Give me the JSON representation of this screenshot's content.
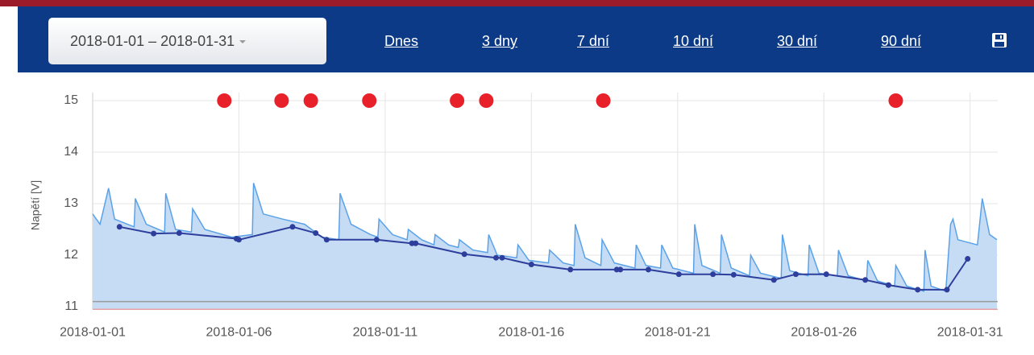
{
  "toolbar": {
    "date_range": "2018-01-01 – 2018-01-31",
    "links": [
      "Dnes",
      "3 dny",
      "7 dní",
      "10 dní",
      "30 dní",
      "90 dní"
    ]
  },
  "chart_data": {
    "type": "line",
    "y_label": "Napětí [V]",
    "xlim": [
      "2018-01-01",
      "2018-02-01"
    ],
    "xticks": [
      "2018-01-01",
      "2018-01-06",
      "2018-01-11",
      "2018-01-16",
      "2018-01-21",
      "2018-01-26",
      "2018-01-31"
    ],
    "ylim": [
      10.95,
      15
    ],
    "yticks": [
      11,
      12,
      13,
      14,
      15
    ],
    "grid": true,
    "reference_lines": [
      {
        "value": 11.1,
        "color": "#9a9a9a"
      },
      {
        "value": 10.95,
        "color": "#e8a0a0"
      }
    ],
    "series": [
      {
        "style": "area",
        "color": "#5aa2e8",
        "fill": "#c6dcf5",
        "x": [
          "2018-01-01 00:00",
          "2018-01-01 06:00",
          "2018-01-01 13:00",
          "2018-01-01 18:00",
          "2018-01-02 10:00",
          "2018-01-02 11:00",
          "2018-01-02 20:00",
          "2018-01-03 11:00",
          "2018-01-03 12:00",
          "2018-01-03 20:00",
          "2018-01-04 09:00",
          "2018-01-04 10:00",
          "2018-01-04 20:00",
          "2018-01-05 18:00",
          "2018-01-06 11:00",
          "2018-01-06 12:00",
          "2018-01-06 20:00",
          "2018-01-07 12:00",
          "2018-01-08 06:00",
          "2018-01-08 20:00",
          "2018-01-09 10:00",
          "2018-01-09 11:00",
          "2018-01-09 20:00",
          "2018-01-10 12:00",
          "2018-01-10 18:00",
          "2018-01-10 19:00",
          "2018-01-11 06:00",
          "2018-01-11 18:00",
          "2018-01-11 19:00",
          "2018-01-12 06:00",
          "2018-01-12 16:00",
          "2018-01-12 17:00",
          "2018-01-13 04:00",
          "2018-01-13 12:00",
          "2018-01-13 13:00",
          "2018-01-14 00:00",
          "2018-01-14 12:00",
          "2018-01-14 13:00",
          "2018-01-14 20:00",
          "2018-01-15 12:00",
          "2018-01-15 13:00",
          "2018-01-15 22:00",
          "2018-01-16 14:00",
          "2018-01-16 15:00",
          "2018-01-17 02:00",
          "2018-01-17 11:00",
          "2018-01-17 12:00",
          "2018-01-17 20:00",
          "2018-01-18 09:00",
          "2018-01-18 10:00",
          "2018-01-18 20:00",
          "2018-01-19 13:00",
          "2018-01-19 14:00",
          "2018-01-19 22:00",
          "2018-01-20 10:00",
          "2018-01-20 11:00",
          "2018-01-20 20:00",
          "2018-01-21 13:00",
          "2018-01-21 14:00",
          "2018-01-21 20:00",
          "2018-01-22 11:00",
          "2018-01-22 12:00",
          "2018-01-22 20:00",
          "2018-01-23 11:00",
          "2018-01-23 12:00",
          "2018-01-23 20:00",
          "2018-01-24 13:00",
          "2018-01-24 14:00",
          "2018-01-24 20:00",
          "2018-01-25 11:00",
          "2018-01-25 12:00",
          "2018-01-25 20:00",
          "2018-01-26 11:00",
          "2018-01-26 12:00",
          "2018-01-26 20:00",
          "2018-01-27 11:00",
          "2018-01-27 12:00",
          "2018-01-27 20:00",
          "2018-01-28 10:00",
          "2018-01-28 11:00",
          "2018-01-28 20:00",
          "2018-01-29 10:00",
          "2018-01-29 11:00",
          "2018-01-29 16:00",
          "2018-01-30 04:00",
          "2018-01-30 08:00",
          "2018-01-30 10:00",
          "2018-01-30 14:00",
          "2018-01-31 06:00",
          "2018-01-31 10:00",
          "2018-01-31 16:00",
          "2018-01-31 22:00"
        ],
        "values": [
          12.8,
          12.6,
          13.3,
          12.7,
          12.55,
          13.1,
          12.6,
          12.45,
          13.2,
          12.5,
          12.45,
          12.9,
          12.5,
          12.35,
          12.4,
          13.4,
          12.8,
          12.7,
          12.6,
          12.35,
          12.3,
          13.2,
          12.6,
          12.4,
          12.35,
          12.7,
          12.4,
          12.3,
          12.5,
          12.3,
          12.2,
          12.4,
          12.2,
          12.15,
          12.3,
          12.1,
          12.05,
          12.4,
          12.0,
          11.95,
          12.2,
          11.9,
          11.85,
          12.1,
          11.85,
          11.8,
          12.6,
          11.95,
          11.8,
          12.3,
          11.85,
          11.75,
          12.2,
          11.8,
          11.75,
          12.2,
          11.75,
          11.65,
          12.6,
          11.8,
          11.65,
          12.4,
          11.75,
          11.6,
          12.0,
          11.65,
          11.55,
          12.4,
          11.7,
          11.6,
          12.2,
          11.65,
          11.6,
          12.1,
          11.6,
          11.5,
          11.9,
          11.5,
          11.4,
          11.8,
          11.4,
          11.3,
          12.1,
          11.4,
          11.3,
          12.6,
          12.7,
          12.3,
          12.2,
          13.1,
          12.4,
          12.3
        ]
      },
      {
        "style": "line-markers",
        "color": "#2e3e9c",
        "x": [
          "2018-01-01 22:00",
          "2018-01-03 02:00",
          "2018-01-03 23:00",
          "2018-01-05 22:00",
          "2018-01-06 00:00",
          "2018-01-07 20:00",
          "2018-01-08 15:00",
          "2018-01-09 00:00",
          "2018-01-10 17:00",
          "2018-01-11 22:00",
          "2018-01-12 01:00",
          "2018-01-13 17:00",
          "2018-01-14 19:00",
          "2018-01-15 00:00",
          "2018-01-16 00:00",
          "2018-01-17 08:00",
          "2018-01-18 22:00",
          "2018-01-19 01:00",
          "2018-01-20 00:00",
          "2018-01-21 01:00",
          "2018-01-22 05:00",
          "2018-01-22 22:00",
          "2018-01-24 07:00",
          "2018-01-25 01:00",
          "2018-01-26 02:00",
          "2018-01-27 10:00",
          "2018-01-28 05:00",
          "2018-01-29 05:00",
          "2018-01-30 05:00",
          "2018-01-30 22:00"
        ],
        "values": [
          12.55,
          12.42,
          12.43,
          12.32,
          12.3,
          12.55,
          12.43,
          12.3,
          12.3,
          12.23,
          12.23,
          12.02,
          11.95,
          11.95,
          11.82,
          11.72,
          11.72,
          11.72,
          11.72,
          11.63,
          11.63,
          11.62,
          11.52,
          11.63,
          11.63,
          11.52,
          11.42,
          11.33,
          11.33,
          11.93
        ]
      },
      {
        "style": "markers",
        "color": "#e8202a",
        "x": [
          "2018-01-05 12:00",
          "2018-01-07 11:00",
          "2018-01-08 11:00",
          "2018-01-10 11:00",
          "2018-01-13 11:00",
          "2018-01-14 11:00",
          "2018-01-18 11:00",
          "2018-01-28 11:00"
        ],
        "values": [
          15,
          15,
          15,
          15,
          15,
          15,
          15,
          15
        ]
      }
    ]
  }
}
